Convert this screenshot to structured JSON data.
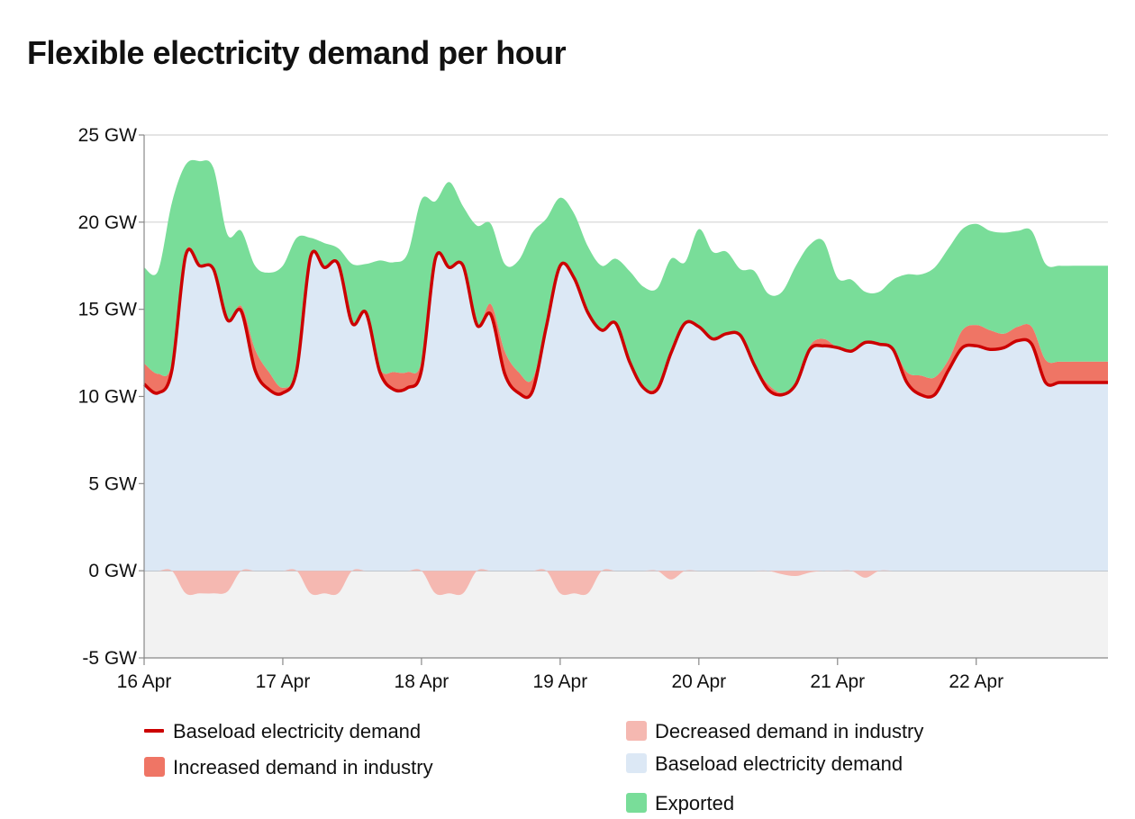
{
  "title": "Flexible electricity demand per hour",
  "colors": {
    "baseload_line": "#cc0000",
    "increased": "#ef7565",
    "decreased": "#f5b8b1",
    "baseload_area": "#dce8f5",
    "exported": "#79dd99",
    "negative_band": "#f2f2f2",
    "gridline": "#d4d4d4",
    "axis": "#888888"
  },
  "chart_data": {
    "type": "area",
    "unit": "GW",
    "ylim": [
      -5,
      25
    ],
    "y_ticks": [
      {
        "value": 25,
        "label": "25 GW"
      },
      {
        "value": 20,
        "label": "20 GW"
      },
      {
        "value": 15,
        "label": "15 GW"
      },
      {
        "value": 10,
        "label": "10 GW"
      },
      {
        "value": 5,
        "label": "5 GW"
      },
      {
        "value": 0,
        "label": "0 GW"
      },
      {
        "value": -5,
        "label": "-5 GW"
      }
    ],
    "x_ticks": [
      "16 Apr",
      "17 Apr",
      "18 Apr",
      "19 Apr",
      "20 Apr",
      "21 Apr",
      "22 Apr"
    ],
    "x_range_days": [
      0,
      6.95
    ],
    "grid": "horizontal",
    "legend_position": "bottom",
    "x_days": [
      0,
      0.1,
      0.2,
      0.3,
      0.4,
      0.5,
      0.6,
      0.7,
      0.8,
      0.9,
      1.0,
      1.1,
      1.2,
      1.3,
      1.4,
      1.5,
      1.6,
      1.7,
      1.8,
      1.9,
      2.0,
      2.1,
      2.2,
      2.3,
      2.4,
      2.5,
      2.6,
      2.7,
      2.8,
      2.9,
      3.0,
      3.1,
      3.2,
      3.3,
      3.4,
      3.5,
      3.6,
      3.7,
      3.8,
      3.9,
      4.0,
      4.1,
      4.2,
      4.3,
      4.4,
      4.5,
      4.6,
      4.7,
      4.8,
      4.9,
      5.0,
      5.1,
      5.2,
      5.3,
      5.4,
      5.5,
      5.6,
      5.7,
      5.8,
      5.9,
      6.0,
      6.1,
      6.2,
      6.3,
      6.4,
      6.5,
      6.6,
      6.7,
      6.8,
      6.9,
      6.95
    ],
    "series": [
      {
        "name": "Baseload electricity demand",
        "kind": "line",
        "values": [
          10.7,
          10.2,
          11.5,
          18.1,
          17.5,
          17.3,
          14.4,
          14.9,
          11.5,
          10.4,
          10.2,
          11.5,
          18.0,
          17.4,
          17.6,
          14.2,
          14.8,
          11.4,
          10.4,
          10.5,
          11.5,
          17.9,
          17.4,
          17.5,
          14.1,
          14.7,
          11.3,
          10.2,
          10.3,
          14.0,
          17.5,
          16.8,
          14.8,
          13.8,
          14.2,
          12.0,
          10.5,
          10.4,
          12.5,
          14.2,
          14.0,
          13.3,
          13.6,
          13.5,
          11.8,
          10.4,
          10.1,
          10.7,
          12.7,
          12.9,
          12.8,
          12.6,
          13.1,
          13.0,
          12.7,
          10.8,
          10.1,
          10.1,
          11.5,
          12.8,
          12.9,
          12.7,
          12.8,
          13.2,
          13.0,
          10.8,
          10.8,
          10.8,
          10.8,
          10.8,
          10.8
        ]
      },
      {
        "name": "Increased demand in industry",
        "kind": "area",
        "values": [
          1.2,
          1.1,
          0.4,
          0.2,
          0,
          0,
          0,
          0.3,
          1.2,
          1.0,
          0.3,
          0.1,
          0,
          0,
          0,
          0,
          0,
          0.2,
          1.0,
          0.9,
          0.5,
          0.1,
          0,
          0,
          0,
          0.6,
          1.3,
          1.2,
          0.7,
          0.1,
          0,
          0,
          0,
          0,
          0,
          0,
          0,
          0.2,
          0.1,
          0,
          0,
          0,
          0,
          0,
          0,
          0.3,
          0.1,
          0,
          0.2,
          0.4,
          0,
          0,
          0,
          0,
          0.1,
          0.6,
          1.1,
          1.0,
          0.6,
          1.0,
          1.2,
          1.1,
          0.8,
          0.8,
          1.0,
          1.3,
          1.2,
          1.2,
          1.2,
          1.2,
          1.2
        ]
      },
      {
        "name": "Exported",
        "kind": "area",
        "values": [
          5.5,
          5.9,
          9.2,
          5.0,
          6.0,
          5.8,
          4.9,
          4.3,
          4.8,
          5.7,
          7.0,
          7.5,
          1.1,
          1.4,
          0.9,
          3.4,
          2.8,
          6.2,
          6.3,
          6.8,
          9.3,
          3.2,
          4.9,
          3.4,
          5.7,
          4.6,
          5.0,
          6.4,
          8.4,
          6.1,
          3.9,
          3.7,
          3.8,
          3.7,
          3.7,
          5.2,
          5.8,
          5.6,
          5.3,
          3.5,
          5.6,
          5.0,
          4.7,
          3.8,
          5.4,
          5.2,
          5.8,
          6.8,
          5.8,
          5.6,
          4.0,
          4.1,
          2.9,
          3.0,
          3.9,
          5.6,
          5.8,
          6.3,
          6.4,
          5.8,
          5.8,
          5.7,
          5.8,
          5.5,
          5.5,
          5.5,
          5.5,
          5.5,
          5.5,
          5.5,
          5.5
        ]
      },
      {
        "name": "Decreased demand in industry",
        "kind": "area",
        "values": [
          0,
          0,
          0,
          -1.3,
          -1.3,
          -1.3,
          -1.2,
          0,
          0,
          0,
          0,
          0,
          -1.3,
          -1.3,
          -1.3,
          0,
          0,
          0,
          0,
          0,
          0,
          -1.3,
          -1.3,
          -1.3,
          0,
          0,
          0,
          0,
          0,
          0,
          -1.3,
          -1.3,
          -1.3,
          0,
          0,
          0,
          0,
          0,
          -0.5,
          0,
          0,
          0,
          0,
          0,
          0,
          0,
          -0.2,
          -0.3,
          -0.1,
          0,
          0,
          0,
          -0.4,
          0,
          0,
          0,
          0,
          0,
          0,
          0,
          0,
          0,
          0,
          0,
          0,
          0,
          0,
          0,
          0,
          0,
          0
        ]
      }
    ]
  },
  "legend": [
    {
      "id": "baseload-line",
      "label": "Baseload electricity demand"
    },
    {
      "id": "increased",
      "label": "Increased demand in industry"
    },
    {
      "id": "decreased",
      "label": "Decreased demand in industry"
    },
    {
      "id": "baseload-area",
      "label": "Baseload electricity demand"
    },
    {
      "id": "exported",
      "label": "Exported"
    }
  ]
}
